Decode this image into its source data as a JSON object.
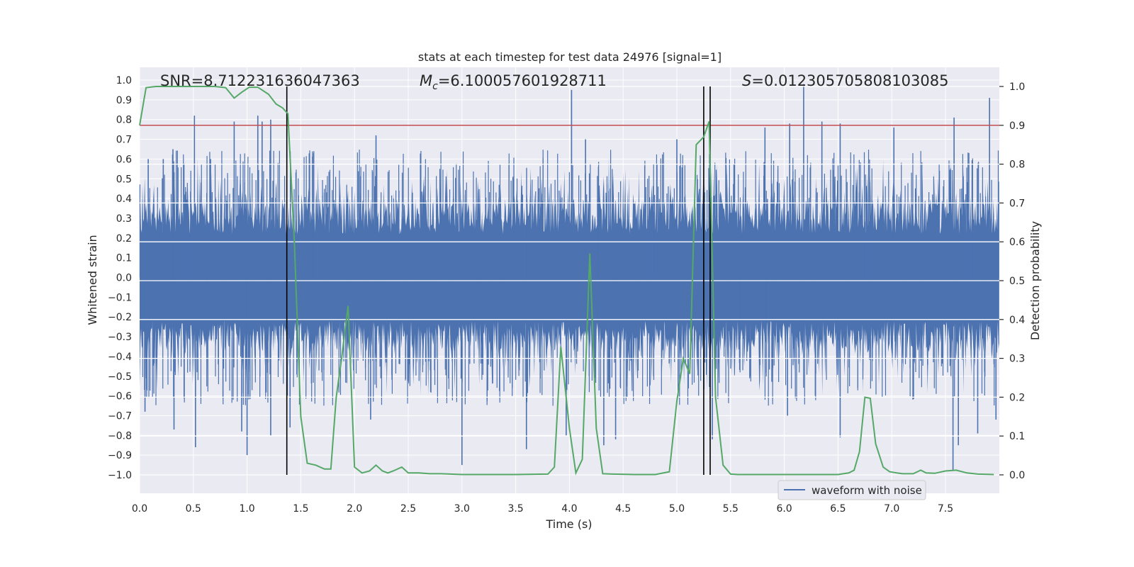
{
  "chart_data": {
    "type": "line",
    "title": "stats at each timestep for test data 24976 [signal=1]",
    "xlabel": "Time (s)",
    "ylabel_left": "Whitened strain",
    "ylabel_right": "Detection probability",
    "xlim": [
      0,
      8
    ],
    "ylim_left": [
      -1.1,
      1.05
    ],
    "ylim_right": [
      -0.05,
      1.03
    ],
    "x_ticks": [
      "0.0",
      "0.5",
      "1.0",
      "1.5",
      "2.0",
      "2.5",
      "3.0",
      "3.5",
      "4.0",
      "4.5",
      "5.0",
      "5.5",
      "6.0",
      "6.5",
      "7.0",
      "7.5"
    ],
    "y_left_ticks": [
      "1.0",
      "0.9",
      "0.8",
      "0.7",
      "0.6",
      "0.5",
      "0.4",
      "0.3",
      "0.2",
      "0.1",
      "0.0",
      "-0.1",
      "-0.2",
      "-0.3",
      "-0.4",
      "-0.5",
      "-0.6",
      "-0.7",
      "-0.8",
      "-0.9",
      "-1.0"
    ],
    "y_right_ticks": [
      "1.0",
      "0.9",
      "0.8",
      "0.7",
      "0.6",
      "0.5",
      "0.4",
      "0.3",
      "0.2",
      "0.1",
      "0.0"
    ],
    "annotations": {
      "snr": "SNR=8.712231636047363",
      "mc_prefix": "M",
      "mc_sub": "c",
      "mc_value": "=6.100057601928711",
      "s_prefix": "S",
      "s_value": "=0.012305705808103085"
    },
    "legend": [
      {
        "label": "waveform with noise",
        "color": "#4c72b0"
      }
    ],
    "legend_position": "lower right",
    "grid": true,
    "background_color": "#eaeaf2",
    "waveform_color": "#4c72b0",
    "probability_color": "#55a868",
    "threshold_color": "#c44e52",
    "threshold_probability": 0.9,
    "vertical_markers_time": [
      1.37,
      5.25,
      5.31
    ],
    "waveform_peaks": [
      [
        0.08,
        0.6
      ],
      [
        0.22,
        0.6
      ],
      [
        0.31,
        0.65
      ],
      [
        0.51,
        0.82
      ],
      [
        0.66,
        0.6
      ],
      [
        0.88,
        0.79
      ],
      [
        1.1,
        0.82
      ],
      [
        1.14,
        0.79
      ],
      [
        1.22,
        0.8
      ],
      [
        2.2,
        0.72
      ],
      [
        4.02,
        0.95
      ],
      [
        4.15,
        0.7
      ],
      [
        5.0,
        0.7
      ],
      [
        5.82,
        0.76
      ],
      [
        6.05,
        0.78
      ],
      [
        6.18,
        0.98
      ],
      [
        6.35,
        0.79
      ],
      [
        6.52,
        0.78
      ],
      [
        7.02,
        0.76
      ],
      [
        7.58,
        0.81
      ],
      [
        7.91,
        0.91
      ]
    ],
    "waveform_troughs": [
      [
        0.05,
        -0.68
      ],
      [
        0.32,
        -0.77
      ],
      [
        0.52,
        -0.86
      ],
      [
        0.95,
        -0.78
      ],
      [
        1.0,
        -0.9
      ],
      [
        1.22,
        -0.8
      ],
      [
        1.4,
        -0.76
      ],
      [
        2.15,
        -0.72
      ],
      [
        3.0,
        -0.95
      ],
      [
        3.6,
        -0.87
      ],
      [
        3.97,
        -0.8
      ],
      [
        4.32,
        -0.85
      ],
      [
        4.43,
        -0.82
      ],
      [
        5.33,
        -0.82
      ],
      [
        6.03,
        -0.7
      ],
      [
        6.52,
        -0.81
      ],
      [
        7.57,
        -0.98
      ],
      [
        7.62,
        -0.85
      ],
      [
        7.8,
        -0.79
      ],
      [
        7.97,
        -0.72
      ]
    ],
    "probability_series": {
      "name": "",
      "x": [
        0.0,
        0.06,
        0.15,
        0.3,
        0.5,
        0.7,
        0.8,
        0.88,
        0.95,
        1.02,
        1.1,
        1.2,
        1.27,
        1.33,
        1.38,
        1.44,
        1.5,
        1.56,
        1.64,
        1.72,
        1.78,
        1.83,
        1.88,
        1.94,
        2.0,
        2.07,
        2.14,
        2.2,
        2.26,
        2.31,
        2.36,
        2.44,
        2.5,
        2.6,
        2.7,
        2.8,
        3.0,
        3.2,
        3.5,
        3.8,
        3.86,
        3.92,
        4.0,
        4.06,
        4.12,
        4.19,
        4.25,
        4.31,
        4.4,
        4.6,
        4.8,
        4.93,
        5.0,
        5.06,
        5.12,
        5.18,
        5.25,
        5.3,
        5.36,
        5.43,
        5.5,
        5.57,
        5.8,
        6.0,
        6.3,
        6.5,
        6.6,
        6.65,
        6.7,
        6.75,
        6.8,
        6.85,
        6.92,
        6.98,
        7.05,
        7.1,
        7.2,
        7.27,
        7.32,
        7.4,
        7.5,
        7.6,
        7.7,
        7.8,
        7.95
      ],
      "y": [
        0.9,
        0.997,
        1.0,
        1.0,
        1.0,
        1.0,
        0.997,
        0.97,
        0.985,
        0.998,
        0.998,
        0.98,
        0.955,
        0.945,
        0.93,
        0.6,
        0.15,
        0.03,
        0.025,
        0.015,
        0.015,
        0.2,
        0.3,
        0.435,
        0.02,
        0.005,
        0.01,
        0.025,
        0.01,
        0.005,
        0.01,
        0.02,
        0.005,
        0.005,
        0.003,
        0.003,
        0.001,
        0.001,
        0.001,
        0.002,
        0.02,
        0.33,
        0.12,
        0.005,
        0.04,
        0.57,
        0.12,
        0.003,
        0.002,
        0.001,
        0.001,
        0.008,
        0.19,
        0.3,
        0.26,
        0.85,
        0.87,
        0.91,
        0.2,
        0.025,
        0.002,
        0.001,
        0.001,
        0.001,
        0.001,
        0.001,
        0.005,
        0.012,
        0.06,
        0.2,
        0.197,
        0.08,
        0.02,
        0.008,
        0.005,
        0.003,
        0.003,
        0.012,
        0.005,
        0.004,
        0.01,
        0.012,
        0.005,
        0.002,
        0.001
      ]
    }
  }
}
